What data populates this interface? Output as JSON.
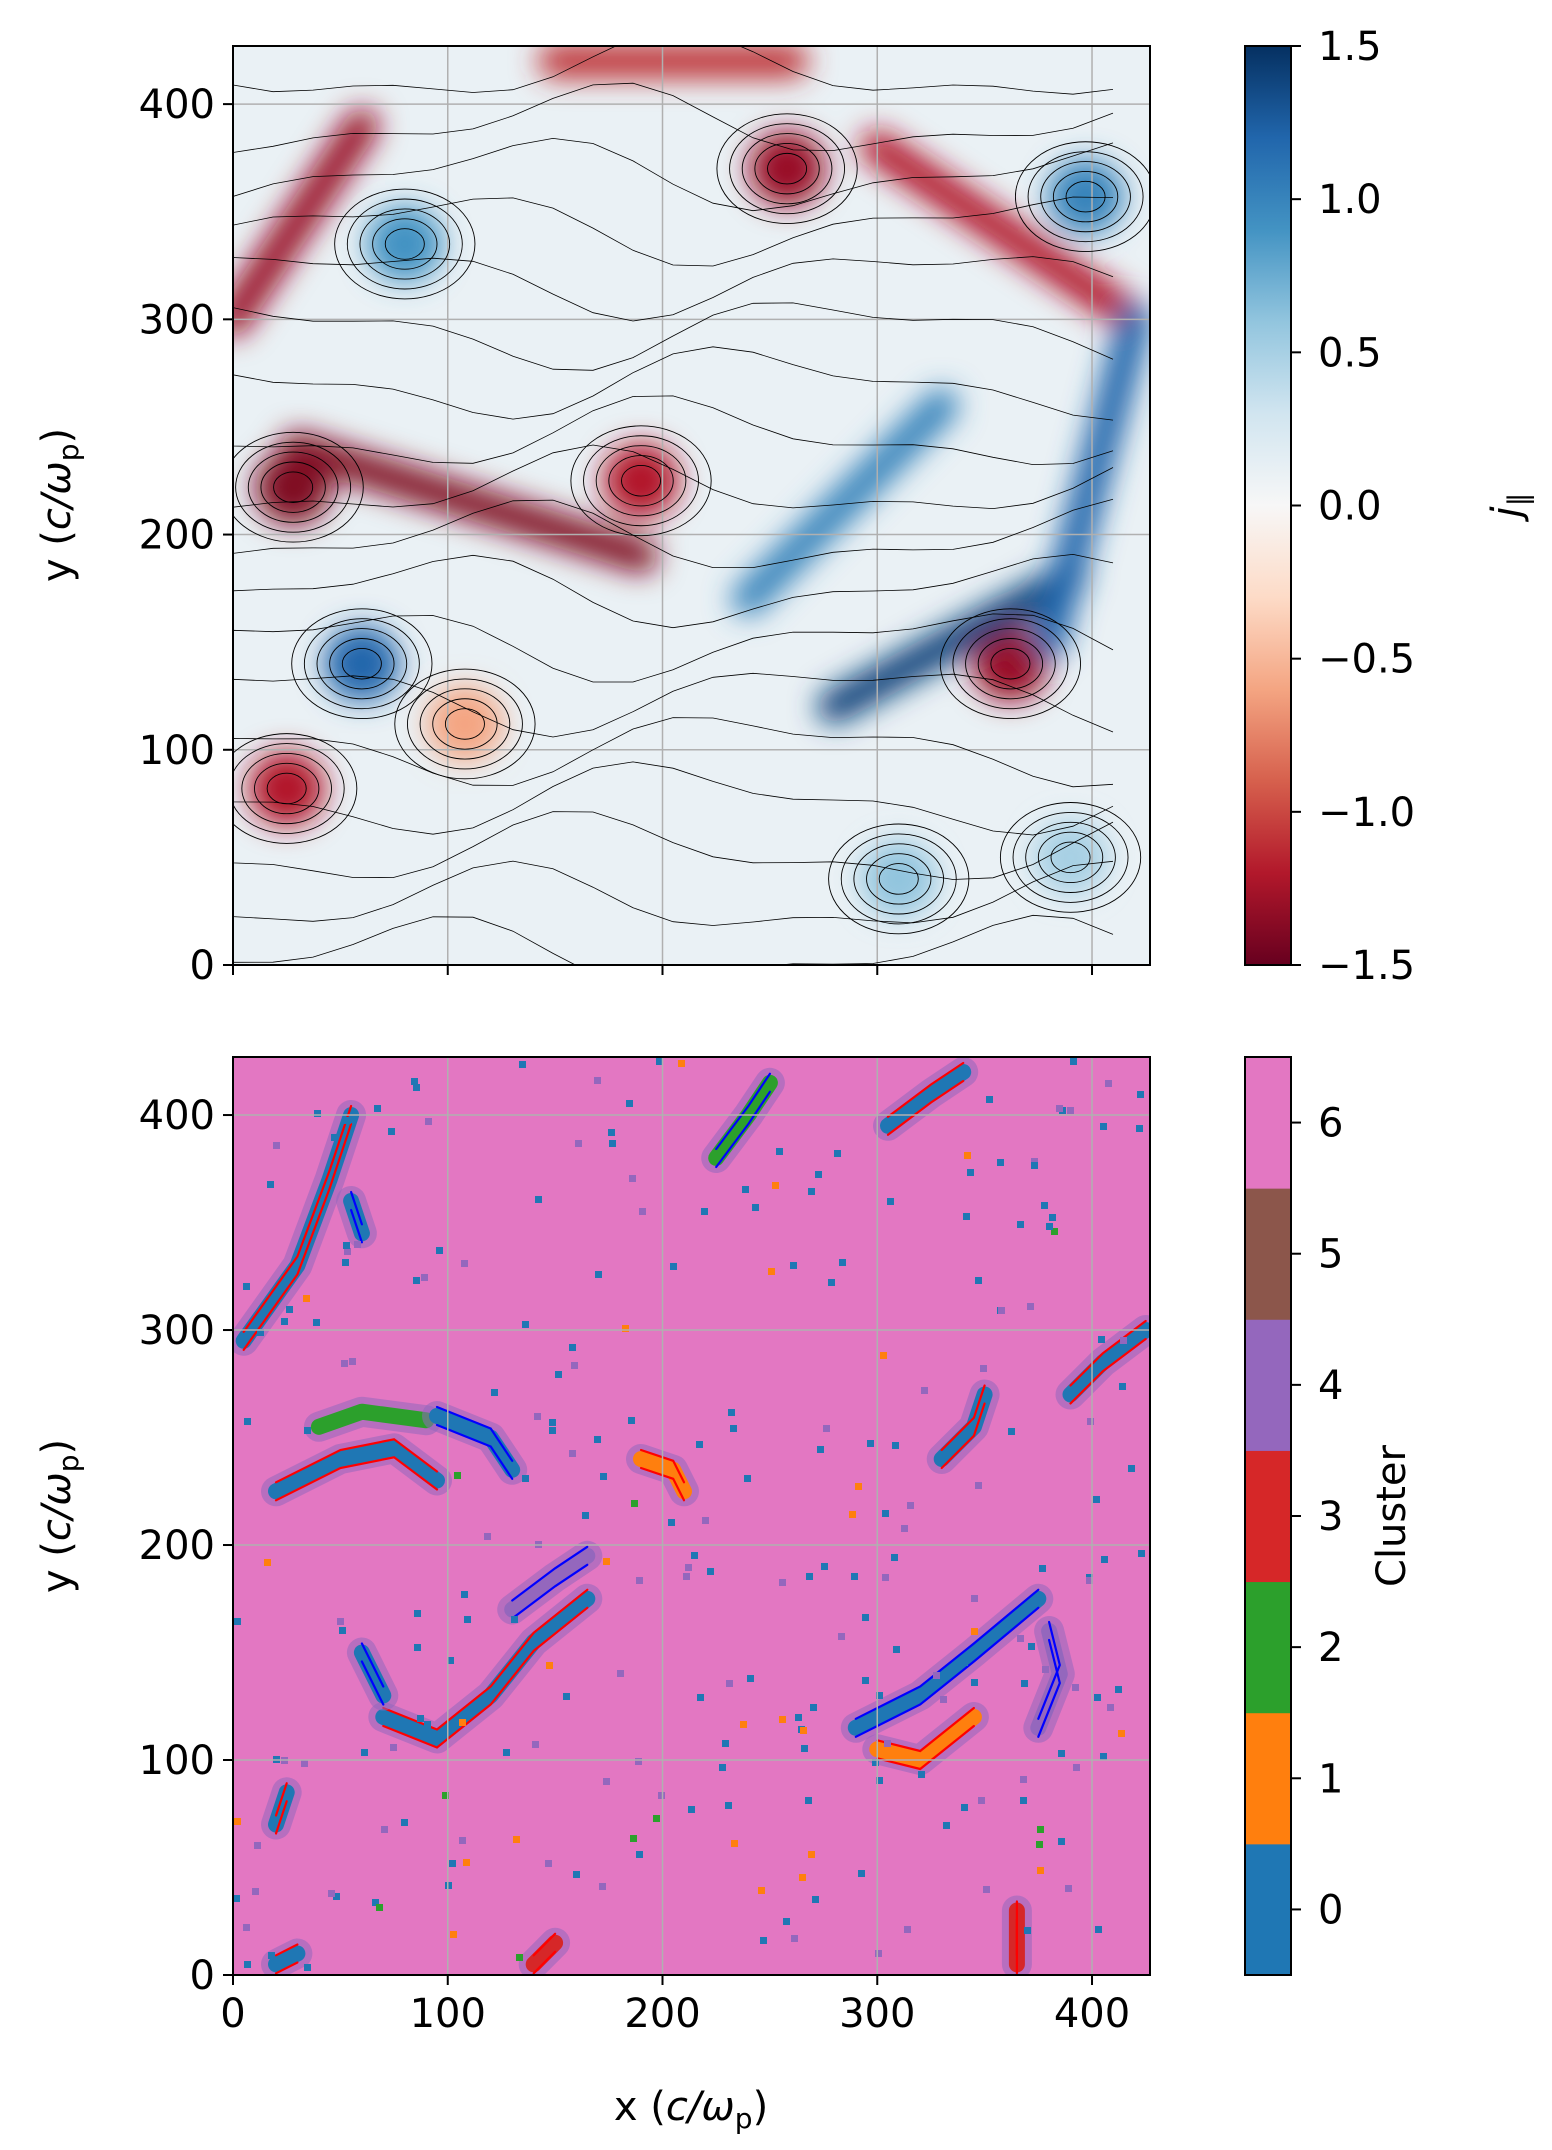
{
  "chart_data": [
    {
      "type": "heatmap",
      "panel": "top",
      "title": "",
      "xlabel": "",
      "ylabel_main": "y (",
      "ylabel_math": "c/ω",
      "ylabel_sub": "p",
      "ylabel_close": ")",
      "xlim": [
        0,
        427
      ],
      "ylim": [
        0,
        427
      ],
      "xticks": [
        0,
        100,
        200,
        300,
        400
      ],
      "yticks": [
        0,
        100,
        200,
        300,
        400
      ],
      "ytick_labels": [
        "0",
        "100",
        "200",
        "300",
        "400"
      ],
      "grid": true,
      "colormap": "RdBu",
      "colormap_stops": [
        "#67001f",
        "#b2182b",
        "#d6604d",
        "#f4a582",
        "#fddbc7",
        "#f7f7f7",
        "#d1e5f0",
        "#92c5de",
        "#4393c3",
        "#2166ac",
        "#053061"
      ],
      "colorbar": {
        "label": "j",
        "label_sub": "∥",
        "range": [
          -1.5,
          1.5
        ],
        "ticks": [
          -1.5,
          -1.0,
          -0.5,
          0.0,
          0.5,
          1.0,
          1.5
        ],
        "tick_labels": [
          "−1.5",
          "−1.0",
          "−0.5",
          "0.0",
          "0.5",
          "1.0",
          "1.5"
        ]
      },
      "overlay": "magnetic field streamlines (black)",
      "features": [
        {
          "kind": "vortex",
          "center": [
            80,
            335
          ],
          "value": 0.9
        },
        {
          "kind": "vortex",
          "center": [
            258,
            370
          ],
          "value": -1.3
        },
        {
          "kind": "vortex",
          "center": [
            190,
            225
          ],
          "value": -1.2
        },
        {
          "kind": "vortex",
          "center": [
            362,
            140
          ],
          "value": -1.3
        },
        {
          "kind": "vortex",
          "center": [
            397,
            357
          ],
          "value": 1.0
        },
        {
          "kind": "vortex",
          "center": [
            25,
            82
          ],
          "value": -1.2
        },
        {
          "kind": "vortex",
          "center": [
            28,
            222
          ],
          "value": -1.4
        },
        {
          "kind": "vortex",
          "center": [
            60,
            140
          ],
          "value": 1.2
        },
        {
          "kind": "vortex",
          "center": [
            108,
            112
          ],
          "value": -0.6
        },
        {
          "kind": "vortex",
          "center": [
            310,
            40
          ],
          "value": 0.6
        },
        {
          "kind": "vortex",
          "center": [
            390,
            50
          ],
          "value": 0.5
        },
        {
          "kind": "current_sheet",
          "from": [
            0,
            300
          ],
          "to": [
            60,
            390
          ],
          "value": -1.3
        },
        {
          "kind": "current_sheet",
          "from": [
            30,
            240
          ],
          "to": [
            190,
            190
          ],
          "value": -1.4
        },
        {
          "kind": "current_sheet",
          "from": [
            280,
            120
          ],
          "to": [
            390,
            180
          ],
          "value": 1.4
        },
        {
          "kind": "current_sheet",
          "from": [
            300,
            380
          ],
          "to": [
            420,
            300
          ],
          "value": -1.2
        },
        {
          "kind": "current_sheet",
          "from": [
            150,
            420
          ],
          "to": [
            260,
            420
          ],
          "value": -1.1
        },
        {
          "kind": "current_sheet",
          "from": [
            240,
            170
          ],
          "to": [
            330,
            260
          ],
          "value": 1.0
        },
        {
          "kind": "current_sheet",
          "from": [
            380,
            150
          ],
          "to": [
            420,
            300
          ],
          "value": 1.2
        }
      ]
    },
    {
      "type": "heatmap",
      "panel": "bottom",
      "title": "",
      "xlabel_main": "x (",
      "xlabel_math": "c/ω",
      "xlabel_sub": "p",
      "xlabel_close": ")",
      "ylabel_main": "y (",
      "ylabel_math": "c/ω",
      "ylabel_sub": "p",
      "ylabel_close": ")",
      "xlim": [
        0,
        427
      ],
      "ylim": [
        0,
        427
      ],
      "xticks": [
        0,
        100,
        200,
        300,
        400
      ],
      "xtick_labels": [
        "0",
        "100",
        "200",
        "300",
        "400"
      ],
      "yticks": [
        0,
        100,
        200,
        300,
        400
      ],
      "ytick_labels": [
        "0",
        "100",
        "200",
        "300",
        "400"
      ],
      "grid": true,
      "background_cluster": 6,
      "cluster_colors": [
        "#1f77b4",
        "#ff7f0e",
        "#2ca02c",
        "#d62728",
        "#9467bd",
        "#8c564b",
        "#e377c2"
      ],
      "colorbar": {
        "label": "Cluster",
        "ticks": [
          0,
          1,
          2,
          3,
          4,
          5,
          6
        ],
        "tick_labels": [
          "0",
          "1",
          "2",
          "3",
          "4",
          "5",
          "6"
        ]
      },
      "contours": {
        "positive_j_color": "#0000ff",
        "negative_j_color": "#ff0000"
      },
      "structures": [
        {
          "path": [
            [
              5,
              295
            ],
            [
              30,
              330
            ],
            [
              45,
              370
            ],
            [
              55,
              400
            ]
          ],
          "cluster": 0,
          "contour": "red"
        },
        {
          "path": [
            [
              20,
              225
            ],
            [
              50,
              240
            ],
            [
              75,
              245
            ],
            [
              95,
              230
            ]
          ],
          "cluster": 0,
          "contour": "red"
        },
        {
          "path": [
            [
              40,
              255
            ],
            [
              60,
              262
            ],
            [
              90,
              258
            ]
          ],
          "cluster": 2,
          "contour": "none"
        },
        {
          "path": [
            [
              95,
              260
            ],
            [
              120,
              250
            ],
            [
              130,
              235
            ]
          ],
          "cluster": 0,
          "contour": "blue"
        },
        {
          "path": [
            [
              70,
              120
            ],
            [
              95,
              110
            ],
            [
              120,
              130
            ],
            [
              140,
              155
            ],
            [
              165,
              175
            ]
          ],
          "cluster": 0,
          "contour": "red"
        },
        {
          "path": [
            [
              60,
              150
            ],
            [
              70,
              130
            ]
          ],
          "cluster": 0,
          "contour": "blue"
        },
        {
          "path": [
            [
              290,
              115
            ],
            [
              320,
              130
            ],
            [
              345,
              150
            ],
            [
              375,
              175
            ]
          ],
          "cluster": 0,
          "contour": "blue"
        },
        {
          "path": [
            [
              300,
              105
            ],
            [
              320,
              100
            ],
            [
              345,
              120
            ]
          ],
          "cluster": 1,
          "contour": "red"
        },
        {
          "path": [
            [
              225,
              380
            ],
            [
              240,
              400
            ],
            [
              250,
              415
            ]
          ],
          "cluster": 2,
          "contour": "blue"
        },
        {
          "path": [
            [
              305,
              395
            ],
            [
              325,
              410
            ],
            [
              340,
              420
            ]
          ],
          "cluster": 0,
          "contour": "red"
        },
        {
          "path": [
            [
              390,
              270
            ],
            [
              405,
              285
            ],
            [
              425,
              300
            ]
          ],
          "cluster": 0,
          "contour": "red"
        },
        {
          "path": [
            [
              330,
              240
            ],
            [
              345,
              255
            ],
            [
              350,
              270
            ]
          ],
          "cluster": 0,
          "contour": "red"
        },
        {
          "path": [
            [
              130,
              170
            ],
            [
              150,
              185
            ],
            [
              165,
              195
            ]
          ],
          "cluster": 4,
          "contour": "blue"
        },
        {
          "path": [
            [
              190,
              240
            ],
            [
              205,
              235
            ],
            [
              210,
              225
            ]
          ],
          "cluster": 1,
          "contour": "red"
        },
        {
          "path": [
            [
              20,
              70
            ],
            [
              25,
              85
            ]
          ],
          "cluster": 0,
          "contour": "red"
        },
        {
          "path": [
            [
              55,
              360
            ],
            [
              60,
              345
            ]
          ],
          "cluster": 0,
          "contour": "blue"
        },
        {
          "path": [
            [
              140,
              5
            ],
            [
              150,
              15
            ]
          ],
          "cluster": 3,
          "contour": "red"
        },
        {
          "path": [
            [
              20,
              5
            ],
            [
              30,
              10
            ]
          ],
          "cluster": 0,
          "contour": "red"
        },
        {
          "path": [
            [
              365,
              5
            ],
            [
              365,
              30
            ]
          ],
          "cluster": 3,
          "contour": "red"
        },
        {
          "path": [
            [
              375,
              115
            ],
            [
              385,
              140
            ],
            [
              380,
              160
            ]
          ],
          "cluster": 4,
          "contour": "blue"
        }
      ]
    }
  ]
}
